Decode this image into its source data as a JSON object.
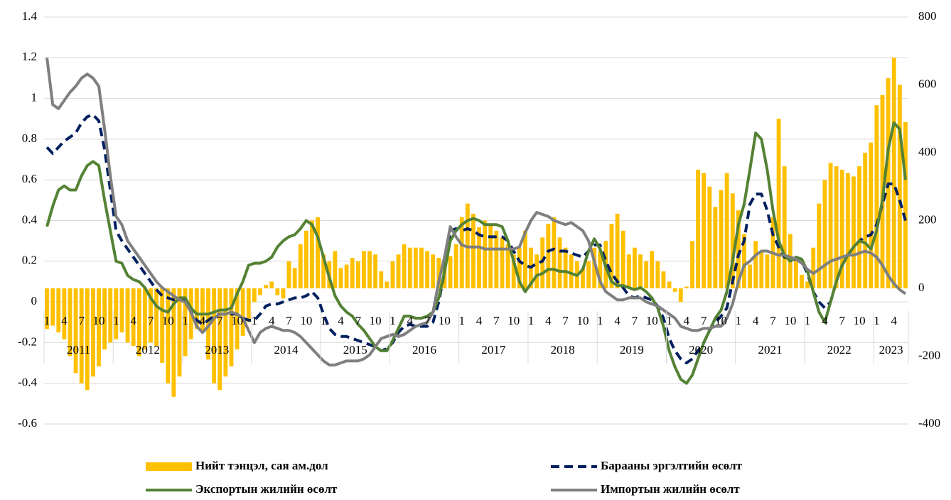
{
  "chart_data": {
    "type": "bar_line",
    "categories": [
      "1",
      null,
      null,
      "4",
      null,
      null,
      "7",
      null,
      null,
      "10",
      null,
      null,
      "1",
      null,
      null,
      "4",
      null,
      null,
      "7",
      null,
      null,
      "10",
      null,
      null,
      "1",
      null,
      null,
      "4",
      null,
      null,
      "7",
      null,
      null,
      "10",
      null,
      null,
      "1",
      null,
      null,
      "4",
      null,
      null,
      "7",
      null,
      null,
      "10",
      null,
      null,
      "1",
      null,
      null,
      "4",
      null,
      null,
      "7",
      null,
      null,
      "10",
      null,
      null,
      "1",
      null,
      null,
      "4",
      null,
      null,
      "7",
      null,
      null,
      "10",
      null,
      null,
      "1",
      null,
      null,
      "4",
      null,
      null,
      "7",
      null,
      null,
      "10",
      null,
      null,
      "1",
      null,
      null,
      "4",
      null,
      null,
      "7",
      null,
      null,
      "10",
      null,
      null,
      "1",
      null,
      null,
      "4",
      null,
      null,
      "7",
      null,
      null,
      "10",
      null,
      null,
      "1",
      null,
      null,
      "4",
      null,
      null,
      "7",
      null,
      null,
      "10",
      null,
      null,
      "1",
      null,
      null,
      "4",
      null,
      null,
      "7",
      null,
      null,
      "10",
      null,
      null,
      "1",
      null,
      null,
      "4",
      null,
      null,
      "7",
      null,
      null,
      "10",
      null,
      null,
      "1",
      null,
      null,
      "4",
      null,
      null
    ],
    "year_groups": [
      "2011",
      "2012",
      "2013",
      "2014",
      "2015",
      "2016",
      "2017",
      "2018",
      "2019",
      "2020",
      "2021",
      "2022",
      "2023"
    ],
    "ylim": [
      -0.6,
      1.4
    ],
    "yticks": [
      -0.6,
      -0.4,
      -0.2,
      0,
      0.2,
      0.4,
      0.6,
      0.8,
      1,
      1.2,
      1.4
    ],
    "y2lim": [
      -400,
      800
    ],
    "y2ticks": [
      -400,
      -200,
      0,
      200,
      400,
      600,
      800
    ],
    "grid": true,
    "legend": "bottom",
    "series": [
      {
        "name": "Нийт тэнцэл, сая ам.дол",
        "type": "bar",
        "axis": "y2",
        "color": "#ffc000",
        "values": [
          -120,
          -110,
          -130,
          -150,
          -200,
          -250,
          -280,
          -300,
          -260,
          -230,
          -180,
          -160,
          -150,
          -130,
          -160,
          -170,
          -200,
          -180,
          -160,
          -170,
          -220,
          -280,
          -320,
          -260,
          -200,
          -150,
          -120,
          -130,
          -210,
          -280,
          -300,
          -260,
          -230,
          -180,
          -140,
          -100,
          -40,
          -20,
          10,
          20,
          -20,
          -30,
          80,
          60,
          130,
          170,
          200,
          210,
          100,
          80,
          110,
          60,
          70,
          90,
          80,
          110,
          110,
          100,
          50,
          20,
          80,
          100,
          130,
          120,
          120,
          120,
          110,
          100,
          90,
          85,
          95,
          130,
          210,
          250,
          220,
          180,
          200,
          190,
          170,
          150,
          130,
          100,
          120,
          170,
          120,
          100,
          150,
          190,
          210,
          150,
          120,
          100,
          80,
          60,
          80,
          120,
          110,
          140,
          190,
          220,
          170,
          100,
          120,
          100,
          80,
          110,
          80,
          50,
          20,
          -10,
          -40,
          5,
          140,
          350,
          340,
          300,
          240,
          290,
          340,
          280,
          230,
          160,
          70,
          140,
          110,
          100,
          210,
          500,
          360,
          160,
          90,
          40,
          20,
          120,
          250,
          320,
          370,
          360,
          350,
          340,
          330,
          360,
          400,
          430,
          540,
          570,
          620,
          680,
          600,
          490
        ]
      },
      {
        "name": "Барааны эргэлтийн өсөлт",
        "type": "line",
        "dash": true,
        "color": "#002060",
        "values": [
          0.76,
          0.73,
          0.76,
          0.79,
          0.81,
          0.83,
          0.88,
          0.91,
          0.92,
          0.89,
          0.75,
          0.55,
          0.35,
          0.3,
          0.26,
          0.22,
          0.18,
          0.14,
          0.1,
          0.06,
          0.03,
          0.02,
          0.01,
          0.02,
          0.01,
          -0.05,
          -0.09,
          -0.11,
          -0.09,
          -0.07,
          -0.06,
          -0.06,
          -0.06,
          -0.06,
          -0.08,
          -0.09,
          -0.09,
          -0.06,
          -0.02,
          -0.01,
          -0.01,
          0.0,
          0.01,
          0.02,
          0.02,
          0.03,
          0.05,
          0.02,
          -0.06,
          -0.13,
          -0.16,
          -0.17,
          -0.17,
          -0.18,
          -0.19,
          -0.2,
          -0.21,
          -0.22,
          -0.24,
          -0.23,
          -0.2,
          -0.15,
          -0.12,
          -0.11,
          -0.12,
          -0.12,
          -0.12,
          -0.1,
          0.0,
          0.15,
          0.35,
          0.36,
          0.35,
          0.36,
          0.35,
          0.33,
          0.32,
          0.32,
          0.32,
          0.32,
          0.3,
          0.25,
          0.2,
          0.18,
          0.17,
          0.19,
          0.2,
          0.25,
          0.26,
          0.25,
          0.25,
          0.24,
          0.23,
          0.22,
          0.25,
          0.28,
          0.28,
          0.2,
          0.14,
          0.1,
          0.07,
          0.03,
          0.02,
          0.03,
          0.02,
          0.01,
          -0.02,
          -0.08,
          -0.18,
          -0.24,
          -0.28,
          -0.3,
          -0.28,
          -0.24,
          -0.2,
          -0.14,
          -0.1,
          -0.07,
          -0.03,
          0.1,
          0.23,
          0.3,
          0.48,
          0.53,
          0.53,
          0.45,
          0.33,
          0.27,
          0.22,
          0.21,
          0.21,
          0.2,
          0.14,
          0.05,
          0.0,
          -0.03,
          0.0,
          0.1,
          0.18,
          0.23,
          0.27,
          0.3,
          0.32,
          0.33,
          0.38,
          0.48,
          0.58,
          0.58,
          0.5,
          0.4
        ]
      },
      {
        "name": "Экспортын жилийн өсөлт",
        "type": "line",
        "color": "#548235",
        "values": [
          0.37,
          0.47,
          0.55,
          0.57,
          0.55,
          0.55,
          0.62,
          0.67,
          0.69,
          0.67,
          0.5,
          0.35,
          0.2,
          0.19,
          0.13,
          0.11,
          0.1,
          0.07,
          0.02,
          -0.02,
          -0.04,
          -0.05,
          -0.01,
          0.02,
          0.02,
          -0.03,
          -0.06,
          -0.06,
          -0.06,
          -0.05,
          -0.04,
          -0.04,
          -0.03,
          0.04,
          0.1,
          0.18,
          0.19,
          0.19,
          0.2,
          0.22,
          0.27,
          0.3,
          0.32,
          0.33,
          0.36,
          0.4,
          0.38,
          0.32,
          0.22,
          0.12,
          0.03,
          -0.02,
          -0.05,
          -0.07,
          -0.11,
          -0.14,
          -0.18,
          -0.22,
          -0.24,
          -0.24,
          -0.19,
          -0.13,
          -0.07,
          -0.07,
          -0.08,
          -0.08,
          -0.07,
          -0.05,
          0.02,
          0.15,
          0.3,
          0.35,
          0.38,
          0.4,
          0.41,
          0.4,
          0.38,
          0.38,
          0.38,
          0.37,
          0.3,
          0.2,
          0.1,
          0.05,
          0.09,
          0.13,
          0.14,
          0.16,
          0.16,
          0.15,
          0.15,
          0.14,
          0.13,
          0.16,
          0.25,
          0.31,
          0.26,
          0.17,
          0.1,
          0.08,
          0.08,
          0.07,
          0.06,
          0.07,
          0.05,
          0.02,
          -0.03,
          -0.12,
          -0.24,
          -0.32,
          -0.38,
          -0.4,
          -0.36,
          -0.28,
          -0.2,
          -0.14,
          -0.08,
          -0.04,
          0.05,
          0.2,
          0.38,
          0.48,
          0.65,
          0.83,
          0.8,
          0.65,
          0.45,
          0.3,
          0.23,
          0.2,
          0.22,
          0.21,
          0.15,
          0.05,
          -0.05,
          -0.1,
          0.0,
          0.1,
          0.18,
          0.23,
          0.27,
          0.3,
          0.29,
          0.26,
          0.35,
          0.5,
          0.75,
          0.88,
          0.85,
          0.6
        ]
      },
      {
        "name": "Импортын жилийн өсөлт",
        "type": "line",
        "color": "#7f7f7f",
        "values": [
          1.2,
          0.97,
          0.95,
          0.99,
          1.03,
          1.06,
          1.1,
          1.12,
          1.1,
          1.06,
          0.85,
          0.62,
          0.42,
          0.38,
          0.3,
          0.26,
          0.22,
          0.18,
          0.14,
          0.1,
          0.07,
          0.05,
          0.03,
          0.01,
          0.0,
          -0.05,
          -0.12,
          -0.15,
          -0.12,
          -0.08,
          -0.06,
          -0.06,
          -0.05,
          -0.06,
          -0.08,
          -0.14,
          -0.2,
          -0.15,
          -0.13,
          -0.12,
          -0.13,
          -0.14,
          -0.14,
          -0.15,
          -0.17,
          -0.2,
          -0.23,
          -0.26,
          -0.29,
          -0.31,
          -0.31,
          -0.3,
          -0.29,
          -0.29,
          -0.29,
          -0.28,
          -0.26,
          -0.22,
          -0.18,
          -0.17,
          -0.16,
          -0.17,
          -0.16,
          -0.14,
          -0.12,
          -0.11,
          -0.1,
          -0.05,
          0.1,
          0.22,
          0.37,
          0.32,
          0.28,
          0.27,
          0.27,
          0.27,
          0.26,
          0.26,
          0.26,
          0.26,
          0.26,
          0.26,
          0.27,
          0.34,
          0.4,
          0.44,
          0.43,
          0.42,
          0.4,
          0.39,
          0.38,
          0.39,
          0.37,
          0.35,
          0.3,
          0.2,
          0.1,
          0.05,
          0.03,
          0.01,
          0.01,
          0.02,
          0.02,
          0.02,
          0.0,
          -0.01,
          -0.02,
          -0.04,
          -0.06,
          -0.08,
          -0.12,
          -0.13,
          -0.14,
          -0.14,
          -0.13,
          -0.13,
          -0.12,
          -0.12,
          -0.08,
          -0.01,
          0.1,
          0.18,
          0.2,
          0.23,
          0.25,
          0.25,
          0.24,
          0.23,
          0.23,
          0.22,
          0.21,
          0.19,
          0.16,
          0.14,
          0.16,
          0.18,
          0.2,
          0.21,
          0.22,
          0.23,
          0.23,
          0.24,
          0.25,
          0.24,
          0.22,
          0.18,
          0.13,
          0.09,
          0.06,
          0.04
        ]
      }
    ]
  }
}
